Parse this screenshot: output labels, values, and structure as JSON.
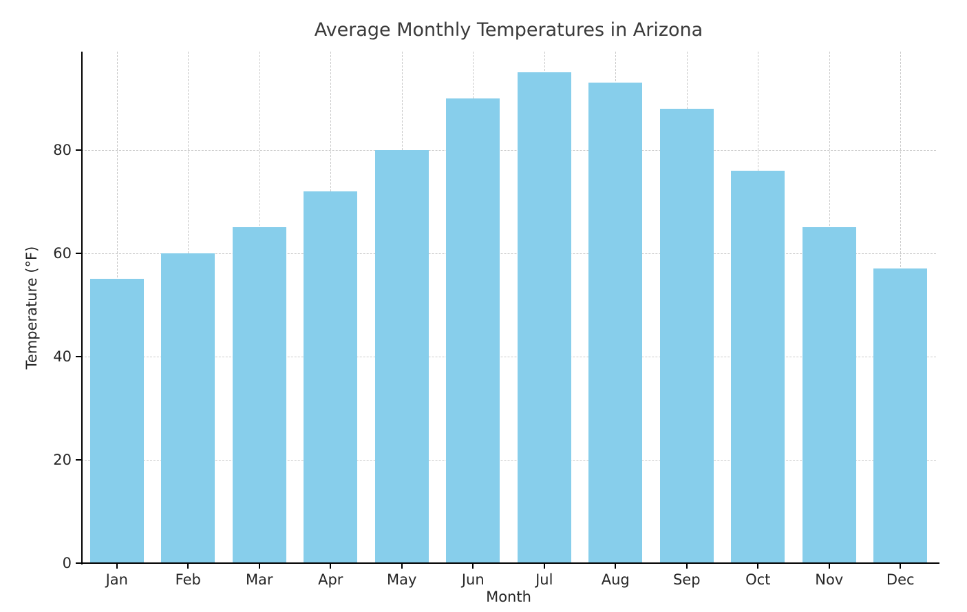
{
  "chart_data": {
    "type": "bar",
    "title": "Average Monthly Temperatures in Arizona",
    "xlabel": "Month",
    "ylabel": "Temperature (°F)",
    "categories": [
      "Jan",
      "Feb",
      "Mar",
      "Apr",
      "May",
      "Jun",
      "Jul",
      "Aug",
      "Sep",
      "Oct",
      "Nov",
      "Dec"
    ],
    "values": [
      55,
      60,
      65,
      72,
      80,
      90,
      95,
      93,
      88,
      76,
      65,
      57
    ],
    "yticks": [
      0,
      20,
      40,
      60,
      80
    ],
    "ylim": [
      0,
      99
    ],
    "bar_color": "#87CEEB",
    "grid": "dashed horizontal and vertical gridlines",
    "legend_position": "none",
    "background_color": "#ffffff"
  }
}
